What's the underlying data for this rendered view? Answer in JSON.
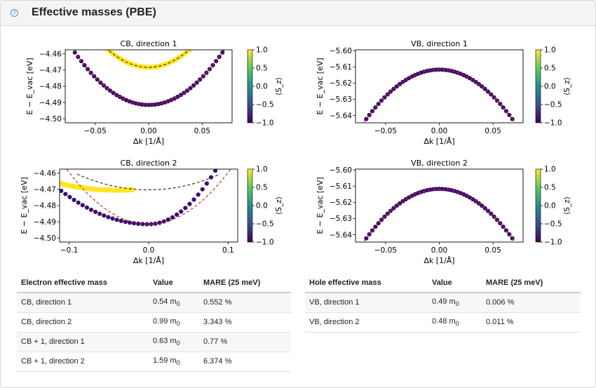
{
  "panel": {
    "title": "Effective masses (PBE)",
    "help_icon": "question-circle-icon"
  },
  "colorbar": {
    "label": "⟨S_z⟩",
    "ticks": [
      "1.0",
      "0.5",
      "0.0",
      "−0.5",
      "−1.0"
    ]
  },
  "chart_data": [
    {
      "type": "scatter",
      "title": "CB, direction 1",
      "xlabel": "Δk [1/Å]",
      "ylabel": "E − E_vac [eV]",
      "xlim": [
        -0.078,
        0.078
      ],
      "ylim": [
        -4.5025,
        -4.4575
      ],
      "xticks": [
        -0.05,
        0.0,
        0.05
      ],
      "xtick_labels": [
        "−0.05",
        "0.00",
        "0.05"
      ],
      "yticks": [
        -4.46,
        -4.47,
        -4.48,
        -4.49,
        -4.5
      ],
      "ytick_labels": [
        "−4.46",
        "−4.47",
        "−4.48",
        "−4.49",
        "−4.50"
      ],
      "series": [
        {
          "kind": "points",
          "color": "#3b0f70",
          "x_range": [
            -0.072,
            0.072
          ],
          "n": 49,
          "curve": {
            "model": "parabola",
            "e0": -4.4915,
            "a": 6.8
          }
        },
        {
          "kind": "points",
          "color": "#fde725",
          "x_range": [
            -0.047,
            0.047
          ],
          "n": 61,
          "curve": {
            "model": "parabola",
            "e0": -4.4683,
            "a": 7.5
          }
        },
        {
          "kind": "dashed-fit",
          "color": "#c81e1e",
          "x_range": [
            -0.075,
            0.075
          ],
          "curve": {
            "model": "parabola",
            "e0": -4.4915,
            "a": 6.8
          }
        },
        {
          "kind": "dashed-fit",
          "color": "#3a1a1a",
          "x_range": [
            -0.05,
            0.05
          ],
          "curve": {
            "model": "parabola",
            "e0": -4.4683,
            "a": 7.5
          }
        }
      ]
    },
    {
      "type": "scatter",
      "title": "VB, direction 1",
      "xlabel": "Δk [1/Å]",
      "ylabel": "E − E_vac [eV]",
      "xlim": [
        -0.078,
        0.078
      ],
      "ylim": [
        -5.6445,
        -5.5995
      ],
      "xticks": [
        -0.05,
        0.0,
        0.05
      ],
      "xtick_labels": [
        "−0.05",
        "0.00",
        "0.05"
      ],
      "yticks": [
        -5.6,
        -5.61,
        -5.62,
        -5.63,
        -5.64
      ],
      "ytick_labels": [
        "−5.60",
        "−5.61",
        "−5.62",
        "−5.63",
        "−5.64"
      ],
      "series": [
        {
          "kind": "points",
          "color": "#3b0f70",
          "x_range": [
            -0.068,
            0.068
          ],
          "n": 49,
          "curve": {
            "model": "parabola",
            "e0": -5.6117,
            "a": -6.6
          }
        },
        {
          "kind": "dashed-fit",
          "color": "#c81e1e",
          "x_range": [
            -0.07,
            0.07
          ],
          "curve": {
            "model": "parabola",
            "e0": -5.6117,
            "a": -6.6
          }
        }
      ]
    },
    {
      "type": "scatter",
      "title": "CB, direction 2",
      "xlabel": "Δk [1/Å]",
      "ylabel": "E − E_vac [eV]",
      "xlim": [
        -0.112,
        0.112
      ],
      "ylim": [
        -4.5025,
        -4.4575
      ],
      "xticks": [
        -0.1,
        0.0,
        0.1
      ],
      "xtick_labels": [
        "−0.1",
        "0.0",
        "0.1"
      ],
      "yticks": [
        -4.46,
        -4.47,
        -4.48,
        -4.49,
        -4.5
      ],
      "ytick_labels": [
        "−4.46",
        "−4.47",
        "−4.48",
        "−4.49",
        "−4.50"
      ],
      "series": [
        {
          "kind": "points",
          "color": "#3b0f70",
          "x_range": [
            -0.11,
            0.1
          ],
          "n": 40,
          "curve": {
            "model": "piecewise",
            "e0": -4.4915,
            "a_left": 1.7,
            "a_right": 4.7
          }
        },
        {
          "kind": "points",
          "color": "#fde725",
          "x_range": [
            -0.11,
            -0.02
          ],
          "n": 80,
          "curve": {
            "model": "parabola",
            "x0": -0.04,
            "e0": -4.4705,
            "a": 0.8
          }
        },
        {
          "kind": "dashed-fit",
          "color": "#c81e1e",
          "x_range": [
            -0.11,
            0.11
          ],
          "curve": {
            "model": "parabola",
            "e0": -4.4915,
            "a": 3.2
          }
        },
        {
          "kind": "dashed-fit",
          "color": "#3a1a1a",
          "x_range": [
            -0.09,
            0.09
          ],
          "curve": {
            "model": "parabola",
            "e0": -4.4703,
            "a": 1.2
          }
        }
      ]
    },
    {
      "type": "scatter",
      "title": "VB, direction 2",
      "xlabel": "Δk [1/Å]",
      "ylabel": "E − E_vac [eV]",
      "xlim": [
        -0.078,
        0.078
      ],
      "ylim": [
        -5.6445,
        -5.5995
      ],
      "xticks": [
        -0.05,
        0.0,
        0.05
      ],
      "xtick_labels": [
        "−0.05",
        "0.00",
        "0.05"
      ],
      "yticks": [
        -5.6,
        -5.61,
        -5.62,
        -5.63,
        -5.64
      ],
      "ytick_labels": [
        "−5.60",
        "−5.61",
        "−5.62",
        "−5.63",
        "−5.64"
      ],
      "series": [
        {
          "kind": "points",
          "color": "#3b0f70",
          "x_range": [
            -0.068,
            0.068
          ],
          "n": 49,
          "curve": {
            "model": "parabola",
            "e0": -5.6117,
            "a": -6.6
          }
        },
        {
          "kind": "dashed-fit",
          "color": "#c81e1e",
          "x_range": [
            -0.07,
            0.07
          ],
          "curve": {
            "model": "parabola",
            "e0": -5.6117,
            "a": -6.6
          }
        }
      ]
    }
  ],
  "electron_table": {
    "headers": [
      "Electron effective mass",
      "Value",
      "MARE (25 meV)"
    ],
    "rows": [
      {
        "label": "CB, direction 1",
        "value": "0.54",
        "unit": "m",
        "sub": "0",
        "mare": "0.552 %"
      },
      {
        "label": "CB, direction 2",
        "value": "0.99",
        "unit": "m",
        "sub": "0",
        "mare": "3.343 %"
      },
      {
        "label": "CB + 1, direction 1",
        "value": "0.63",
        "unit": "m",
        "sub": "0",
        "mare": "0.77 %"
      },
      {
        "label": "CB + 1, direction 2",
        "value": "1.59",
        "unit": "m",
        "sub": "0",
        "mare": "6.374 %"
      }
    ]
  },
  "hole_table": {
    "headers": [
      "Hole effective mass",
      "Value",
      "MARE (25 meV)"
    ],
    "rows": [
      {
        "label": "VB, direction 1",
        "value": "0.49",
        "unit": "m",
        "sub": "0",
        "mare": "0.006 %"
      },
      {
        "label": "VB, direction 2",
        "value": "0.48",
        "unit": "m",
        "sub": "0",
        "mare": "0.011 %"
      }
    ]
  }
}
